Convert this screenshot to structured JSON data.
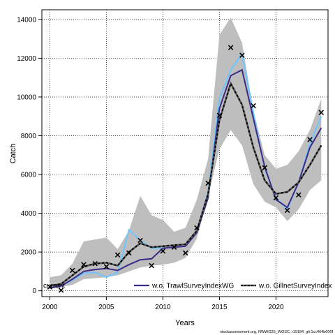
{
  "chart_data": {
    "type": "line",
    "xlabel": "Years",
    "ylabel": "Catch",
    "xlim": [
      1999.3,
      2024.6
    ],
    "ylim": [
      -300,
      14500
    ],
    "xticks": [
      2000,
      2005,
      2010,
      2015,
      2020
    ],
    "yticks": [
      0,
      2000,
      4000,
      6000,
      8000,
      10000,
      12000,
      14000
    ],
    "grid": true,
    "years": [
      2000,
      2001,
      2002,
      2003,
      2004,
      2005,
      2006,
      2007,
      2008,
      2009,
      2010,
      2011,
      2012,
      2013,
      2014,
      2015,
      2016,
      2017,
      2018,
      2019,
      2020,
      2021,
      2022,
      2023,
      2024
    ],
    "band": {
      "color": "#bebebe",
      "lower": [
        100,
        200,
        300,
        600,
        650,
        700,
        800,
        1000,
        1200,
        1300,
        1350,
        1450,
        1700,
        2700,
        4900,
        7300,
        8300,
        7500,
        5500,
        4600,
        4300,
        3600,
        4200,
        5200,
        5700
      ],
      "upper": [
        700,
        800,
        1400,
        2550,
        2650,
        2750,
        2150,
        3100,
        4900,
        3900,
        3650,
        3050,
        3250,
        4700,
        6800,
        13200,
        14100,
        12800,
        9300,
        7000,
        6300,
        6500,
        7200,
        8300,
        9900
      ]
    },
    "series": [
      {
        "name": "current",
        "color": "#1a1a1a",
        "style": "dashed-black",
        "values": [
          250,
          350,
          800,
          1250,
          1400,
          1450,
          1300,
          2000,
          2450,
          2250,
          2300,
          2350,
          2400,
          3100,
          5000,
          8800,
          10700,
          9600,
          7400,
          5700,
          5000,
          5100,
          5600,
          6500,
          7500
        ]
      },
      {
        "name": "w.o. TrawlSurveyIndexWG",
        "color": "#3c2a86",
        "style": "solid",
        "values": [
          150,
          250,
          600,
          1000,
          1100,
          1150,
          1050,
          1350,
          1600,
          1650,
          2200,
          2250,
          2300,
          3000,
          4800,
          9400,
          11100,
          11400,
          8900,
          6400,
          4700,
          4300,
          5600,
          7400,
          8400
        ]
      },
      {
        "name": "w.o. GillnetSurveyIndex",
        "color": "#6ec6ff",
        "style": "dotted-on-light",
        "values": [
          150,
          250,
          550,
          900,
          950,
          700,
          950,
          3150,
          2600,
          2200,
          2200,
          2250,
          2300,
          3100,
          5100,
          9900,
          11400,
          12200,
          9200,
          6300,
          4800,
          4200,
          5600,
          7600,
          9000
        ]
      }
    ],
    "observed": {
      "marker": "x",
      "x": [
        2000,
        2001,
        2002,
        2003,
        2004,
        2005,
        2006,
        2007,
        2008,
        2009,
        2010,
        2011,
        2012,
        2013,
        2014,
        2015,
        2016,
        2017,
        2018,
        2019,
        2020,
        2021,
        2022,
        2023,
        2024
      ],
      "y": [
        200,
        30,
        1050,
        1350,
        1400,
        1250,
        1850,
        1950,
        2600,
        1300,
        2050,
        2250,
        1950,
        3250,
        5550,
        9050,
        12550,
        12150,
        9550,
        6350,
        4800,
        4150,
        4950,
        7800,
        9200
      ]
    },
    "legend": {
      "placement": "bottom",
      "entries": [
        "current",
        "w.o. TrawlSurveyIndexWG",
        "w.o. GillnetSurveyIndex"
      ]
    },
    "footer": "stockassessment.org, NWWG25_WOSC, r19184, git:1cc464b606f"
  }
}
